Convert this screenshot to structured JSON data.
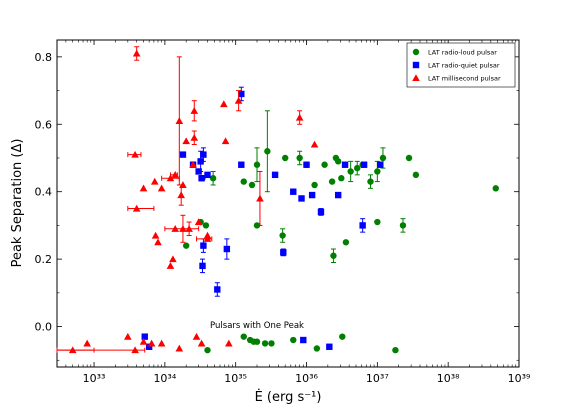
{
  "chart_data": {
    "type": "scatter",
    "title": "",
    "xlabel": "Ė (erg s⁻¹)",
    "ylabel": "Peak Separation (Δ)",
    "xscale": "log",
    "xlim": [
      3e+32,
      1e+39
    ],
    "ylim": [
      -0.12,
      0.85
    ],
    "x_tick_labels": [
      {
        "value": 1e+33,
        "label": "10³³"
      },
      {
        "value": 1e+34,
        "label": "10³⁴"
      },
      {
        "value": 1e+35,
        "label": "10³⁵"
      },
      {
        "value": 1e+36,
        "label": "10³⁶"
      },
      {
        "value": 1e+37,
        "label": "10³⁷"
      },
      {
        "value": 1e+38,
        "label": "10³⁸"
      },
      {
        "value": 1e+39,
        "label": "10³⁹"
      }
    ],
    "y_tick_labels": [
      {
        "value": 0.0,
        "label": "0.0"
      },
      {
        "value": 0.2,
        "label": "0.2"
      },
      {
        "value": 0.4,
        "label": "0.4"
      },
      {
        "value": 0.6,
        "label": "0.6"
      },
      {
        "value": 0.8,
        "label": "0.8"
      }
    ],
    "grid": false,
    "legend_position": "top-right",
    "annotation": {
      "text": "Pulsars with One Peak",
      "x": 2e+35,
      "y": -0.005
    },
    "series": [
      {
        "name": "LAT radio-loud pulsar",
        "marker": "circle",
        "color": "#007f00",
        "points": [
          [
            2e+34,
            0.24
          ],
          [
            3.2e+34,
            0.31
          ],
          [
            3.8e+34,
            0.3
          ],
          [
            3.4e+34,
            0.44
          ],
          [
            4.8e+34,
            0.44
          ],
          [
            1.3e+35,
            0.43
          ],
          [
            1.7e+35,
            0.42
          ],
          [
            2e+35,
            0.48
          ],
          [
            2e+35,
            0.3
          ],
          [
            2.8e+35,
            0.52
          ],
          [
            4.6e+35,
            0.27
          ],
          [
            5e+35,
            0.5
          ],
          [
            8e+35,
            0.5
          ],
          [
            1e+36,
            0.48
          ],
          [
            1.3e+36,
            0.42
          ],
          [
            1.8e+36,
            0.48
          ],
          [
            2.3e+36,
            0.43
          ],
          [
            2.4e+36,
            0.21
          ],
          [
            2.6e+36,
            0.5
          ],
          [
            2.8e+36,
            0.49
          ],
          [
            3.1e+36,
            0.44
          ],
          [
            3.6e+36,
            0.25
          ],
          [
            4.2e+36,
            0.46
          ],
          [
            5.2e+36,
            0.47
          ],
          [
            6.2e+36,
            0.48
          ],
          [
            8e+36,
            0.43
          ],
          [
            1e+37,
            0.46
          ],
          [
            1e+37,
            0.31
          ],
          [
            1.2e+37,
            0.5
          ],
          [
            2.3e+37,
            0.3
          ],
          [
            2.8e+37,
            0.5
          ],
          [
            3.5e+37,
            0.45
          ],
          [
            4.7e+38,
            0.41
          ],
          [
            4e+34,
            -0.07
          ],
          [
            1.3e+35,
            -0.03
          ],
          [
            1.6e+35,
            -0.04
          ],
          [
            1.8e+35,
            -0.045
          ],
          [
            2e+35,
            -0.045
          ],
          [
            2.6e+35,
            -0.05
          ],
          [
            3.2e+35,
            -0.05
          ],
          [
            6.5e+35,
            -0.04
          ],
          [
            1.4e+36,
            -0.065
          ],
          [
            3.2e+36,
            -0.03
          ],
          [
            1.8e+37,
            -0.07
          ]
        ],
        "y_errors": [
          [
            4,
            0.02
          ],
          [
            7,
            0.05
          ],
          [
            9,
            0.12
          ],
          [
            10,
            0.02
          ],
          [
            12,
            0.02
          ],
          [
            17,
            0.02
          ],
          [
            22,
            0.03
          ],
          [
            23,
            0.02
          ],
          [
            25,
            0.02
          ],
          [
            26,
            0.03
          ],
          [
            28,
            0.03
          ],
          [
            29,
            0.02
          ]
        ]
      },
      {
        "name": "LAT radio-quiet pulsar",
        "marker": "square",
        "color": "#0000ff",
        "points": [
          [
            5.5e+34,
            0.11
          ],
          [
            1.8e+34,
            0.51
          ],
          [
            2.5e+34,
            0.48
          ],
          [
            3e+34,
            0.46
          ],
          [
            3.3e+34,
            0.44
          ],
          [
            3.2e+34,
            0.49
          ],
          [
            3.5e+34,
            0.51
          ],
          [
            3.5e+34,
            0.24
          ],
          [
            3.4e+34,
            0.18
          ],
          [
            4e+34,
            0.45
          ],
          [
            7.5e+34,
            0.23
          ],
          [
            1.2e+35,
            0.69
          ],
          [
            1.2e+35,
            0.48
          ],
          [
            3.6e+35,
            0.45
          ],
          [
            4.7e+35,
            0.22
          ],
          [
            6.5e+35,
            0.4
          ],
          [
            8.5e+35,
            0.38
          ],
          [
            1e+36,
            0.48
          ],
          [
            1.2e+36,
            0.39
          ],
          [
            1.6e+36,
            0.34
          ],
          [
            2.8e+36,
            0.39
          ],
          [
            3.5e+36,
            0.48
          ],
          [
            6.2e+36,
            0.3
          ],
          [
            6.5e+36,
            0.48
          ],
          [
            1.1e+37,
            0.48
          ],
          [
            5.2e+33,
            -0.03
          ],
          [
            6e+33,
            -0.06
          ],
          [
            9e+35,
            -0.04
          ],
          [
            2.1e+36,
            -0.06
          ]
        ],
        "y_errors": [
          [
            0,
            0.02
          ],
          [
            5,
            0.03
          ],
          [
            6,
            0.02
          ],
          [
            7,
            0.02
          ],
          [
            8,
            0.02
          ],
          [
            10,
            0.03
          ],
          [
            11,
            0.02
          ],
          [
            14,
            0.01
          ],
          [
            19,
            0.01
          ],
          [
            22,
            0.02
          ]
        ]
      },
      {
        "name": "LAT millisecond pulsar",
        "marker": "triangle",
        "color": "#ff0000",
        "points": [
          [
            3.8e+33,
            0.51
          ],
          [
            4e+33,
            0.81
          ],
          [
            4e+33,
            0.35
          ],
          [
            5e+33,
            0.41
          ],
          [
            7.2e+33,
            0.43
          ],
          [
            7.4e+33,
            0.27
          ],
          [
            8e+33,
            0.25
          ],
          [
            9e+33,
            0.41
          ],
          [
            1.2e+34,
            0.18
          ],
          [
            1.2e+34,
            0.44
          ],
          [
            1.3e+34,
            0.2
          ],
          [
            1.4e+34,
            0.29
          ],
          [
            1.4e+34,
            0.45
          ],
          [
            1.6e+34,
            0.61
          ],
          [
            1.7e+34,
            0.39
          ],
          [
            1.8e+34,
            0.29
          ],
          [
            1.8e+34,
            0.42
          ],
          [
            2e+34,
            0.55
          ],
          [
            2.2e+34,
            0.29
          ],
          [
            2.5e+34,
            0.48
          ],
          [
            2.6e+34,
            0.56
          ],
          [
            2.6e+34,
            0.64
          ],
          [
            3e+34,
            0.31
          ],
          [
            4e+34,
            0.26
          ],
          [
            4e+34,
            0.27
          ],
          [
            6.8e+34,
            0.66
          ],
          [
            7.2e+34,
            0.55
          ],
          [
            1.1e+35,
            0.67
          ],
          [
            2.2e+35,
            0.38
          ],
          [
            8e+35,
            0.62
          ],
          [
            1.3e+36,
            0.54
          ],
          [
            5e+32,
            -0.07
          ],
          [
            8e+32,
            -0.05
          ],
          [
            3e+33,
            -0.03
          ],
          [
            3.8e+33,
            -0.07
          ],
          [
            5e+33,
            -0.045
          ],
          [
            6.5e+33,
            -0.05
          ],
          [
            9e+33,
            -0.05
          ],
          [
            1.6e+34,
            -0.065
          ],
          [
            2.8e+34,
            -0.03
          ],
          [
            3.3e+34,
            -0.05
          ],
          [
            8e+34,
            -0.05
          ]
        ],
        "y_errors": [
          [
            1,
            0.02
          ],
          [
            13,
            0.19
          ],
          [
            14,
            0.03
          ],
          [
            15,
            0.04
          ],
          [
            18,
            0.02
          ],
          [
            20,
            0.02
          ],
          [
            21,
            0.03
          ],
          [
            27,
            0.03
          ],
          [
            28,
            0.08
          ],
          [
            29,
            0.02
          ]
        ],
        "x_errors": [
          [
            0,
            3e+33,
            4.6e+33
          ],
          [
            12,
            1.2e+34,
            1.5e+34
          ],
          [
            18,
            1e+34,
            3e+34
          ],
          [
            23,
            2.8e+34,
            4.6e+34
          ],
          [
            9,
            9e+33,
            1.6e+34
          ],
          [
            2,
            3e+33,
            7e+33
          ],
          [
            34,
            3e+32,
            5.2e+33
          ],
          [
            31,
            3e+32,
            1e+33
          ]
        ]
      }
    ]
  }
}
